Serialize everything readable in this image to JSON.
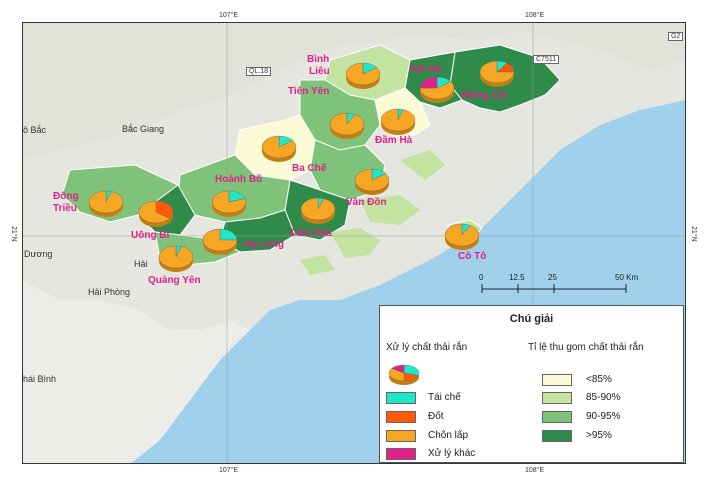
{
  "coords": {
    "top": [
      "107°E",
      "108°E"
    ],
    "bottom": [
      "107°E",
      "108°E"
    ],
    "left": "21°N",
    "right": "21°N"
  },
  "roads": [
    "QL.18",
    "C7511",
    "G2"
  ],
  "places": {
    "bac_giang": "Bắc Giang",
    "bac": "ồ Bắc",
    "duong": "Dương",
    "hai_phong": "Hải Phòng",
    "hai": "Hải",
    "thai_binh": "hái Bình"
  },
  "districts": [
    {
      "name": "Bình\nLiêu",
      "label_lines": [
        "Bình",
        "Liêu"
      ]
    },
    {
      "name": "Tiên Yên",
      "label_lines": [
        "Tiên Yên"
      ]
    },
    {
      "name": "Hải Hà",
      "label_lines": [
        "Hải Hà"
      ]
    },
    {
      "name": "Móng Cái",
      "label_lines": [
        "Móng Cái"
      ]
    },
    {
      "name": "Đầm Hà",
      "label_lines": [
        "Đầm Hà"
      ]
    },
    {
      "name": "Ba Chẽ",
      "label_lines": [
        "Ba Chẽ"
      ]
    },
    {
      "name": "Hoành Bồ",
      "label_lines": [
        "Hoành Bồ"
      ]
    },
    {
      "name": "Đông Triều",
      "label_lines": [
        "Đông",
        "Triều"
      ]
    },
    {
      "name": "Uông Bí",
      "label_lines": [
        "Uông Bí"
      ]
    },
    {
      "name": "Hạ Long",
      "label_lines": [
        "Hạ Long"
      ]
    },
    {
      "name": "Quảng Yên",
      "label_lines": [
        "Quảng Yên"
      ]
    },
    {
      "name": "Cẩm Phả",
      "label_lines": [
        "Cẩm Phả"
      ]
    },
    {
      "name": "Vân Đồn",
      "label_lines": [
        "Vân Đồn"
      ]
    },
    {
      "name": "Cô Tô",
      "label_lines": [
        "Cô Tô"
      ]
    }
  ],
  "scale": {
    "ticks": [
      "0",
      "12.5",
      "25",
      "50 Km"
    ]
  },
  "legend": {
    "title": "Chú giải",
    "treatment_title": "Xử lý chất thải rắn",
    "collection_title": "Tỉ lệ thu gom chất thải rắn",
    "treatment_items": [
      {
        "label": "Tái chế",
        "color": "#1ee8c8"
      },
      {
        "label": "Đốt",
        "color": "#ff5a0a"
      },
      {
        "label": "Chôn lấp",
        "color": "#f5a623"
      },
      {
        "label": "Xử lý khác",
        "color": "#e0218a"
      }
    ],
    "collection_items": [
      {
        "label": "<85%",
        "color": "#fdfbd6"
      },
      {
        "label": "85-90%",
        "color": "#c3e4a0"
      },
      {
        "label": "90-95%",
        "color": "#7fc27a"
      },
      {
        "label": ">95%",
        "color": "#2e8b4a"
      }
    ]
  }
}
